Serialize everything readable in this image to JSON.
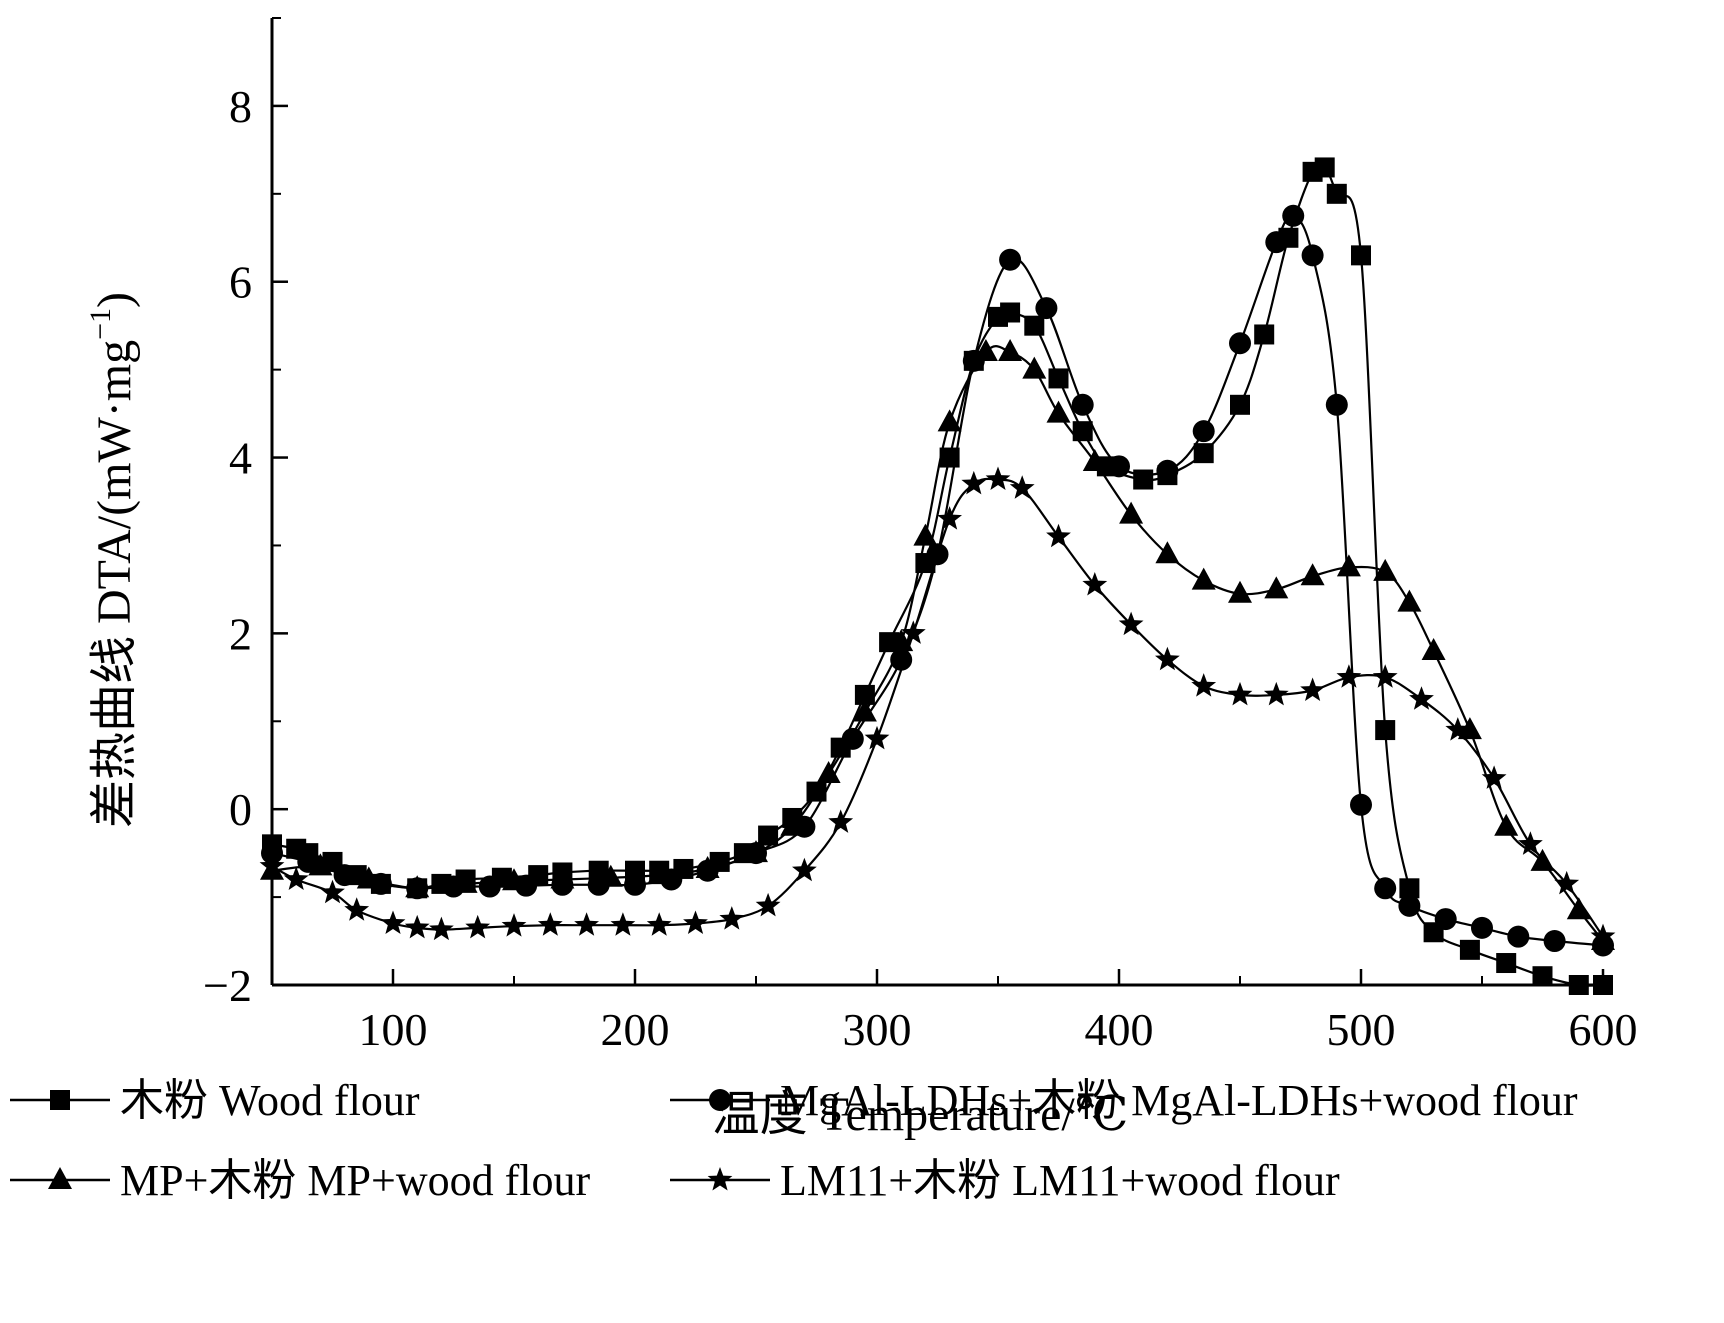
{
  "chart_data": {
    "type": "line",
    "xlabel": "温度 Temperature/℃",
    "ylabel": "差热曲线 DTA/(mW·mg",
    "ylabel_sup": "−1",
    "ylabel_close": ")",
    "xlim": [
      50,
      600
    ],
    "ylim": [
      -2,
      9
    ],
    "xticks": [
      100,
      200,
      300,
      400,
      500,
      600
    ],
    "xtick_labels": [
      "100",
      "200",
      "300",
      "400",
      "500",
      "600"
    ],
    "yticks": [
      -2,
      0,
      2,
      4,
      6,
      8
    ],
    "ytick_labels": [
      "−2",
      "0",
      "2",
      "4",
      "6",
      "8"
    ],
    "grid": false,
    "legend_position": "bottom",
    "series": [
      {
        "name": "木粉 Wood flour",
        "marker": "square",
        "x": [
          50,
          60,
          65,
          75,
          85,
          95,
          110,
          120,
          130,
          145,
          160,
          170,
          185,
          200,
          210,
          220,
          235,
          245,
          255,
          265,
          275,
          285,
          295,
          305,
          320,
          330,
          340,
          350,
          355,
          365,
          375,
          385,
          395,
          410,
          420,
          435,
          450,
          460,
          470,
          480,
          485,
          490,
          500,
          510,
          520,
          530,
          545,
          560,
          575,
          590,
          600
        ],
        "y": [
          -0.4,
          -0.45,
          -0.5,
          -0.6,
          -0.75,
          -0.85,
          -0.9,
          -0.85,
          -0.8,
          -0.78,
          -0.75,
          -0.72,
          -0.7,
          -0.7,
          -0.7,
          -0.68,
          -0.6,
          -0.5,
          -0.3,
          -0.1,
          0.2,
          0.7,
          1.3,
          1.9,
          2.8,
          4.0,
          5.1,
          5.6,
          5.65,
          5.5,
          4.9,
          4.3,
          3.9,
          3.75,
          3.8,
          4.05,
          4.6,
          5.4,
          6.5,
          7.25,
          7.3,
          7.0,
          6.3,
          0.9,
          -0.9,
          -1.4,
          -1.6,
          -1.75,
          -1.9,
          -2.0,
          -2.0
        ]
      },
      {
        "name": "MgAl-LDHs+木粉 MgAl-LDHs+wood flour",
        "marker": "circle",
        "x": [
          50,
          65,
          80,
          95,
          110,
          125,
          140,
          155,
          170,
          185,
          200,
          215,
          230,
          250,
          270,
          290,
          310,
          325,
          340,
          355,
          370,
          385,
          400,
          420,
          435,
          450,
          465,
          472,
          480,
          490,
          500,
          510,
          520,
          535,
          550,
          565,
          580,
          600
        ],
        "y": [
          -0.5,
          -0.6,
          -0.75,
          -0.85,
          -0.9,
          -0.88,
          -0.88,
          -0.87,
          -0.86,
          -0.86,
          -0.86,
          -0.8,
          -0.7,
          -0.5,
          -0.2,
          0.8,
          1.7,
          2.9,
          5.1,
          6.25,
          5.7,
          4.6,
          3.9,
          3.85,
          4.3,
          5.3,
          6.45,
          6.75,
          6.3,
          4.6,
          0.05,
          -0.9,
          -1.1,
          -1.25,
          -1.35,
          -1.45,
          -1.5,
          -1.55
        ]
      },
      {
        "name": "MP+木粉 MP+wood flour",
        "marker": "triangle",
        "x": [
          50,
          70,
          90,
          110,
          130,
          150,
          170,
          190,
          210,
          230,
          250,
          265,
          280,
          295,
          310,
          320,
          330,
          345,
          355,
          365,
          375,
          390,
          405,
          420,
          435,
          450,
          465,
          480,
          495,
          510,
          520,
          530,
          545,
          560,
          575,
          590,
          600
        ],
        "y": [
          -0.7,
          -0.65,
          -0.8,
          -0.9,
          -0.85,
          -0.82,
          -0.8,
          -0.78,
          -0.75,
          -0.68,
          -0.5,
          -0.2,
          0.4,
          1.1,
          1.9,
          3.1,
          4.4,
          5.2,
          5.2,
          5.0,
          4.5,
          3.95,
          3.35,
          2.9,
          2.6,
          2.45,
          2.5,
          2.65,
          2.75,
          2.7,
          2.35,
          1.8,
          0.9,
          -0.2,
          -0.6,
          -1.15,
          -1.5
        ]
      },
      {
        "name": "LM11+木粉 LM11+wood flour",
        "marker": "star",
        "x": [
          50,
          60,
          75,
          85,
          100,
          110,
          120,
          135,
          150,
          165,
          180,
          195,
          210,
          225,
          240,
          255,
          270,
          285,
          300,
          315,
          330,
          340,
          350,
          360,
          375,
          390,
          405,
          420,
          435,
          450,
          465,
          480,
          495,
          510,
          525,
          540,
          555,
          570,
          585,
          600
        ],
        "y": [
          -0.65,
          -0.8,
          -0.95,
          -1.15,
          -1.3,
          -1.35,
          -1.37,
          -1.35,
          -1.33,
          -1.32,
          -1.32,
          -1.32,
          -1.32,
          -1.3,
          -1.25,
          -1.1,
          -0.7,
          -0.15,
          0.8,
          2.0,
          3.3,
          3.7,
          3.75,
          3.65,
          3.1,
          2.55,
          2.1,
          1.7,
          1.4,
          1.3,
          1.3,
          1.35,
          1.5,
          1.5,
          1.25,
          0.9,
          0.35,
          -0.4,
          -0.85,
          -1.45
        ]
      }
    ]
  }
}
